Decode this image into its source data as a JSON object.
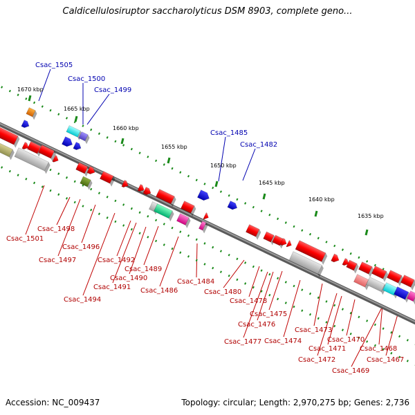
{
  "title": "Caldicellulosiruptor saccharolyticus DSM 8903, complete geno...",
  "footer": {
    "accession": "Accession: NC_009437",
    "topology": "Topology: circular; Length: 2,970,275 bp; Genes: 2,736"
  },
  "scale_ticks": [
    "1670 kbp",
    "1665 kbp",
    "1660 kbp",
    "1655 kbp",
    "1650 kbp",
    "1645 kbp",
    "1640 kbp",
    "1635 kbp"
  ],
  "gene_labels_top": [
    "Csac_1505",
    "Csac_1500",
    "Csac_1499",
    "Csac_1485",
    "Csac_1482"
  ],
  "gene_labels_bottom": [
    "Csac_1501",
    "Csac_1498",
    "Csac_1497",
    "Csac_1496",
    "Csac_1494",
    "Csac_1492",
    "Csac_1491",
    "Csac_1490",
    "Csac_1489",
    "Csac_1486",
    "Csac_1484",
    "Csac_1480",
    "Csac_1478",
    "Csac_1477",
    "Csac_1476",
    "Csac_1475",
    "Csac_1474",
    "Csac_1473",
    "Csac_1472",
    "Csac_1471",
    "Csac_1470",
    "Csac_1469",
    "Csac_1468",
    "Csac_1467"
  ],
  "colors": {
    "backbone": "#808080",
    "forward_gene": "#ff0000",
    "top_label": "#0000b0",
    "bottom_label": "#b00000",
    "tick": "#1a8a1a"
  }
}
